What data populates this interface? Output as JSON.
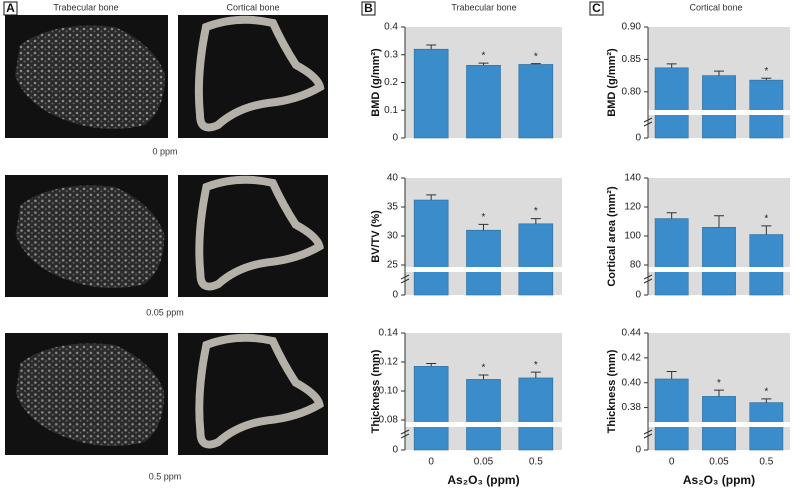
{
  "panel_a": {
    "label": "A",
    "columns": [
      "Trabecular bone",
      "Cortical bone"
    ],
    "rows": [
      "0 ppm",
      "0.05 ppm",
      "0.5 ppm"
    ]
  },
  "panel_b": {
    "label": "B",
    "title": "Trabecular bone"
  },
  "panel_c": {
    "label": "C",
    "title": "Cortical bone"
  },
  "chart_data": [
    {
      "type": "bar",
      "ylabel": "BMD (g/mm²)",
      "categories": [
        "0",
        "0.05",
        "0.5"
      ],
      "values": [
        0.32,
        0.262,
        0.265
      ],
      "errors": [
        0.015,
        0.008,
        0.003
      ],
      "annotations": [
        {
          "x": "0.05",
          "text": "*"
        },
        {
          "x": "0.5",
          "text": "*"
        }
      ],
      "ylim": [
        0,
        0.4
      ],
      "yticks": [
        0,
        0.1,
        0.2,
        0.3,
        0.4
      ],
      "color": "#3b8ccb"
    },
    {
      "type": "bar",
      "ylabel": "BV/TV (%)",
      "categories": [
        "0",
        "0.05",
        "0.5"
      ],
      "values": [
        36.2,
        31.0,
        32.1
      ],
      "errors": [
        0.9,
        1.0,
        0.9
      ],
      "annotations": [
        {
          "x": "0.05",
          "text": "*"
        },
        {
          "x": "0.5",
          "text": "*"
        }
      ],
      "ylim": [
        25,
        40
      ],
      "yticks": [
        25,
        30,
        35,
        40
      ],
      "break_ticks": [
        0
      ],
      "color": "#3b8ccb"
    },
    {
      "type": "bar",
      "ylabel": "Thickness (mm)",
      "categories": [
        "0",
        "0.05",
        "0.5"
      ],
      "values": [
        0.117,
        0.108,
        0.109
      ],
      "errors": [
        0.002,
        0.003,
        0.004
      ],
      "annotations": [
        {
          "x": "0.05",
          "text": "*"
        },
        {
          "x": "0.5",
          "text": "*"
        }
      ],
      "ylim": [
        0.08,
        0.14
      ],
      "yticks": [
        0.08,
        {
          "value": 0.1,
          "label": "0.10"
        },
        0.12,
        0.14
      ],
      "break_ticks": [
        0
      ],
      "xlabel": "As₂O₃ (ppm)",
      "color": "#3b8ccb"
    },
    {
      "type": "bar",
      "ylabel": "BMD (g/mm²)",
      "categories": [
        "0",
        "0.05",
        "0.5"
      ],
      "values": [
        0.837,
        0.825,
        0.818
      ],
      "errors": [
        0.006,
        0.007,
        0.003
      ],
      "annotations": [
        {
          "x": "0.5",
          "text": "*"
        }
      ],
      "ylim": [
        0.775,
        0.9
      ],
      "yticks": [
        {
          "value": 0.8,
          "label": "0.80"
        },
        0.85,
        {
          "value": 0.9,
          "label": "0.90"
        }
      ],
      "break_ticks": [
        0
      ],
      "color": "#3b8ccb"
    },
    {
      "type": "bar",
      "ylabel": "Cortical area (mm²)",
      "categories": [
        "0",
        "0.05",
        "0.5"
      ],
      "values": [
        112,
        106,
        101
      ],
      "errors": [
        4,
        8,
        6
      ],
      "annotations": [
        {
          "x": "0.5",
          "text": "*"
        }
      ],
      "ylim": [
        80,
        140
      ],
      "yticks": [
        80,
        100,
        120,
        140
      ],
      "break_ticks": [
        0
      ],
      "color": "#3b8ccb"
    },
    {
      "type": "bar",
      "ylabel": "Thickness (mm)",
      "categories": [
        "0",
        "0.05",
        "0.5"
      ],
      "values": [
        0.403,
        0.389,
        0.384
      ],
      "errors": [
        0.006,
        0.005,
        0.003
      ],
      "annotations": [
        {
          "x": "0.05",
          "text": "*"
        },
        {
          "x": "0.5",
          "text": "*"
        }
      ],
      "ylim": [
        0.37,
        0.44
      ],
      "yticks": [
        0.38,
        {
          "value": 0.4,
          "label": "0.40"
        },
        0.42,
        0.44
      ],
      "break_ticks": [
        0
      ],
      "xlabel": "As₂O₃ (ppm)",
      "color": "#3b8ccb"
    }
  ]
}
